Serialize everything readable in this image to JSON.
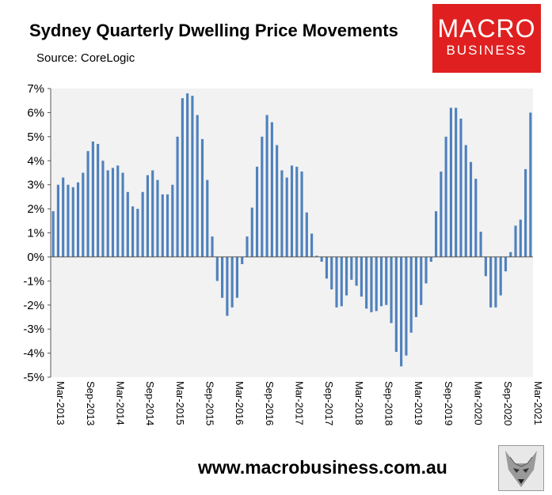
{
  "header": {
    "title": "Sydney Quarterly Dwelling Price Movements",
    "source": "Source: CoreLogic"
  },
  "logo": {
    "line1": "MACRO",
    "line2": "BUSINESS"
  },
  "footer": {
    "url": "www.macrobusiness.com.au"
  },
  "colors": {
    "bar": "#4f81bd",
    "plot_bg": "#f2f2f2",
    "logo_bg": "#e02020"
  },
  "chart_data": {
    "type": "bar",
    "title": "Sydney Quarterly Dwelling Price Movements",
    "ylim": [
      -5,
      7
    ],
    "y_ticks": [
      7,
      6,
      5,
      4,
      3,
      2,
      1,
      0,
      -1,
      -2,
      -3,
      -4,
      -5
    ],
    "y_tick_labels": [
      "7%",
      "6%",
      "5%",
      "4%",
      "3%",
      "2%",
      "1%",
      "0%",
      "-1%",
      "-2%",
      "-3%",
      "-4%",
      "-5%"
    ],
    "x_tick_labels": [
      "Mar-2013",
      "Sep-2013",
      "Mar-2014",
      "Sep-2014",
      "Mar-2015",
      "Sep-2015",
      "Mar-2016",
      "Sep-2016",
      "Mar-2017",
      "Sep-2017",
      "Mar-2018",
      "Sep-2018",
      "Mar-2019",
      "Sep-2019",
      "Mar-2020",
      "Sep-2020",
      "Mar-2021"
    ],
    "x_tick_every": 6,
    "values": [
      1.9,
      3.0,
      3.3,
      3.0,
      2.9,
      3.1,
      3.5,
      4.4,
      4.8,
      4.7,
      4.0,
      3.6,
      3.7,
      3.8,
      3.5,
      2.7,
      2.1,
      2.0,
      2.7,
      3.4,
      3.6,
      3.2,
      2.6,
      2.6,
      3.0,
      5.0,
      6.6,
      6.8,
      6.7,
      5.9,
      4.9,
      3.2,
      0.85,
      -1.0,
      -1.7,
      -2.45,
      -2.1,
      -1.7,
      -0.3,
      0.85,
      2.05,
      3.75,
      5.0,
      5.9,
      5.6,
      4.65,
      3.6,
      3.3,
      3.8,
      3.75,
      3.55,
      1.85,
      0.97,
      0.05,
      -0.2,
      -0.9,
      -1.35,
      -2.1,
      -2.05,
      -1.6,
      -0.95,
      -1.2,
      -1.65,
      -2.15,
      -2.3,
      -2.25,
      -2.05,
      -2.0,
      -2.75,
      -3.95,
      -4.55,
      -4.1,
      -3.15,
      -2.5,
      -2.0,
      -1.1,
      -0.2,
      1.9,
      3.55,
      5.0,
      6.2,
      6.2,
      5.75,
      4.65,
      3.95,
      3.25,
      1.05,
      -0.8,
      -2.1,
      -2.1,
      -1.6,
      -0.6,
      0.2,
      1.3,
      1.55,
      3.65,
      6.0
    ]
  }
}
